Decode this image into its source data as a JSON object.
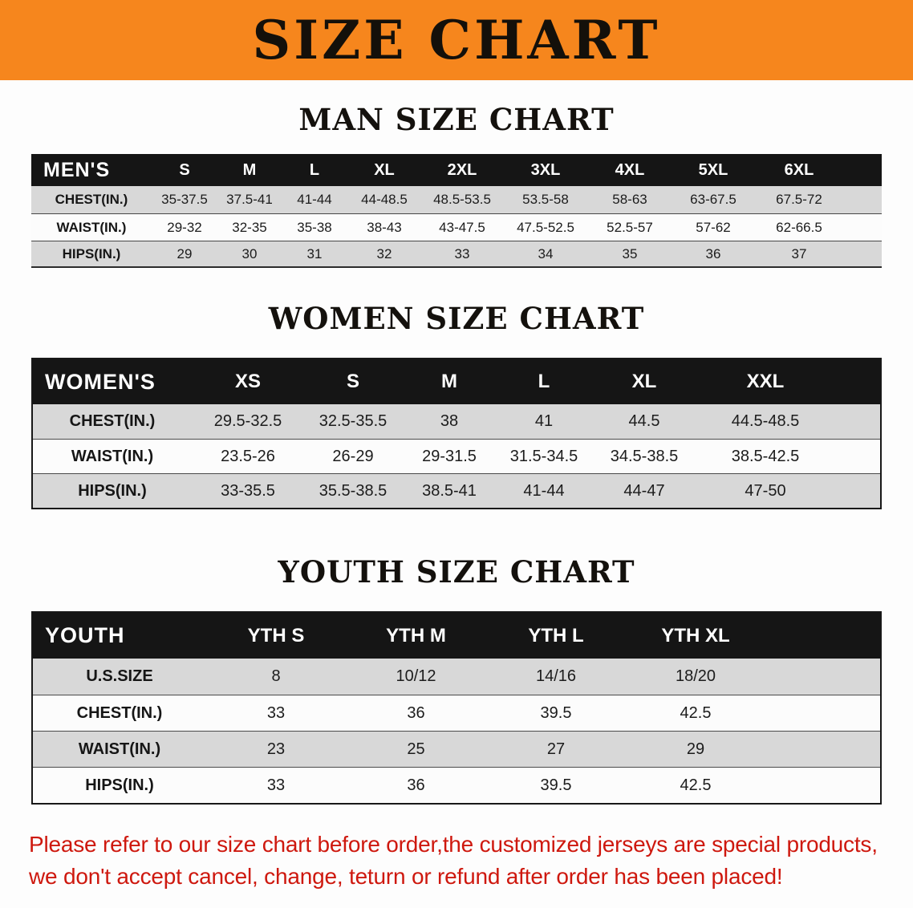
{
  "banner": {
    "title": "SIZE CHART"
  },
  "colors": {
    "banner_bg": "#f6861d",
    "table_header_bg": "#151515",
    "row_shade": "#d8d8d8",
    "row_plain": "#fcfcfc",
    "disclaimer_red": "#ce180e"
  },
  "chart_data": [
    {
      "type": "table",
      "title": "MAN SIZE CHART",
      "header": [
        "MEN'S",
        "S",
        "M",
        "L",
        "XL",
        "2XL",
        "3XL",
        "4XL",
        "5XL",
        "6XL"
      ],
      "rows": [
        [
          "CHEST(IN.)",
          "35-37.5",
          "37.5-41",
          "41-44",
          "44-48.5",
          "48.5-53.5",
          "53.5-58",
          "58-63",
          "63-67.5",
          "67.5-72"
        ],
        [
          "WAIST(IN.)",
          "29-32",
          "32-35",
          "35-38",
          "38-43",
          "43-47.5",
          "47.5-52.5",
          "52.5-57",
          "57-62",
          "62-66.5"
        ],
        [
          "HIPS(IN.)",
          "29",
          "30",
          "31",
          "32",
          "33",
          "34",
          "35",
          "36",
          "37"
        ]
      ]
    },
    {
      "type": "table",
      "title": "WOMEN SIZE CHART",
      "header": [
        "WOMEN'S",
        "XS",
        "S",
        "M",
        "L",
        "XL",
        "XXL"
      ],
      "rows": [
        [
          "CHEST(IN.)",
          "29.5-32.5",
          "32.5-35.5",
          "38",
          "41",
          "44.5",
          "44.5-48.5"
        ],
        [
          "WAIST(IN.)",
          "23.5-26",
          "26-29",
          "29-31.5",
          "31.5-34.5",
          "34.5-38.5",
          "38.5-42.5"
        ],
        [
          "HIPS(IN.)",
          "33-35.5",
          "35.5-38.5",
          "38.5-41",
          "41-44",
          "44-47",
          "47-50"
        ]
      ]
    },
    {
      "type": "table",
      "title": "YOUTH SIZE CHART",
      "header": [
        "YOUTH",
        "YTH S",
        "YTH M",
        "YTH L",
        "YTH XL"
      ],
      "rows": [
        [
          "U.S.SIZE",
          "8",
          "10/12",
          "14/16",
          "18/20"
        ],
        [
          "CHEST(IN.)",
          "33",
          "36",
          "39.5",
          "42.5"
        ],
        [
          "WAIST(IN.)",
          "23",
          "25",
          "27",
          "29"
        ],
        [
          "HIPS(IN.)",
          "33",
          "36",
          "39.5",
          "42.5"
        ]
      ]
    }
  ],
  "disclaimer": {
    "line1": "Please refer to our size chart before order,the customized jerseys are special products,",
    "line2": "we don't accept cancel, change, teturn or refund after order has been placed!"
  }
}
